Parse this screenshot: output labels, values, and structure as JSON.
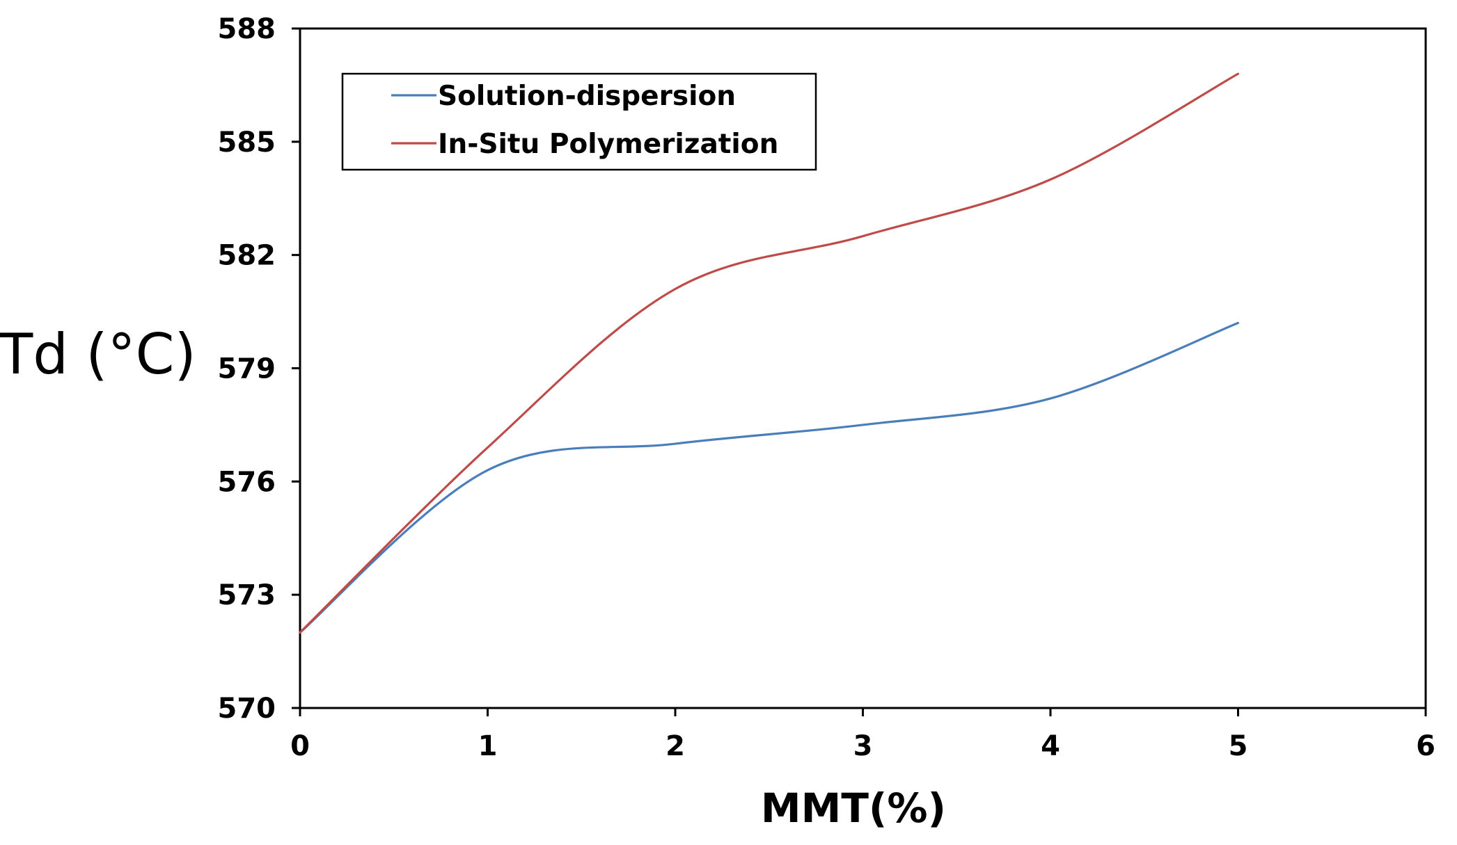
{
  "chart_data": {
    "type": "line",
    "title": "",
    "xlabel": "MMT(%)",
    "ylabel": "Td (°C)",
    "xlim": [
      0,
      6
    ],
    "ylim": [
      570,
      588
    ],
    "xticks": [
      0,
      1,
      2,
      3,
      4,
      5,
      6
    ],
    "yticks": [
      570,
      573,
      576,
      579,
      582,
      585,
      588
    ],
    "xtick_labels": [
      "0",
      "1",
      "2",
      "3",
      "4",
      "5",
      "6"
    ],
    "ytick_labels": [
      "570",
      "573",
      "576",
      "579",
      "582",
      "585",
      "588"
    ],
    "grid": false,
    "smooth": true,
    "legend_position": "top-left",
    "x": [
      0,
      1,
      2,
      3,
      4,
      5
    ],
    "series": [
      {
        "name": "Solution-dispersion",
        "color": "#4a7ebb",
        "values": [
          572.0,
          576.3,
          577.0,
          577.5,
          578.2,
          580.2
        ]
      },
      {
        "name": "In-Situ Polymerization",
        "color": "#be4b48",
        "values": [
          572.0,
          576.9,
          581.1,
          582.5,
          584.0,
          586.8
        ]
      }
    ]
  }
}
